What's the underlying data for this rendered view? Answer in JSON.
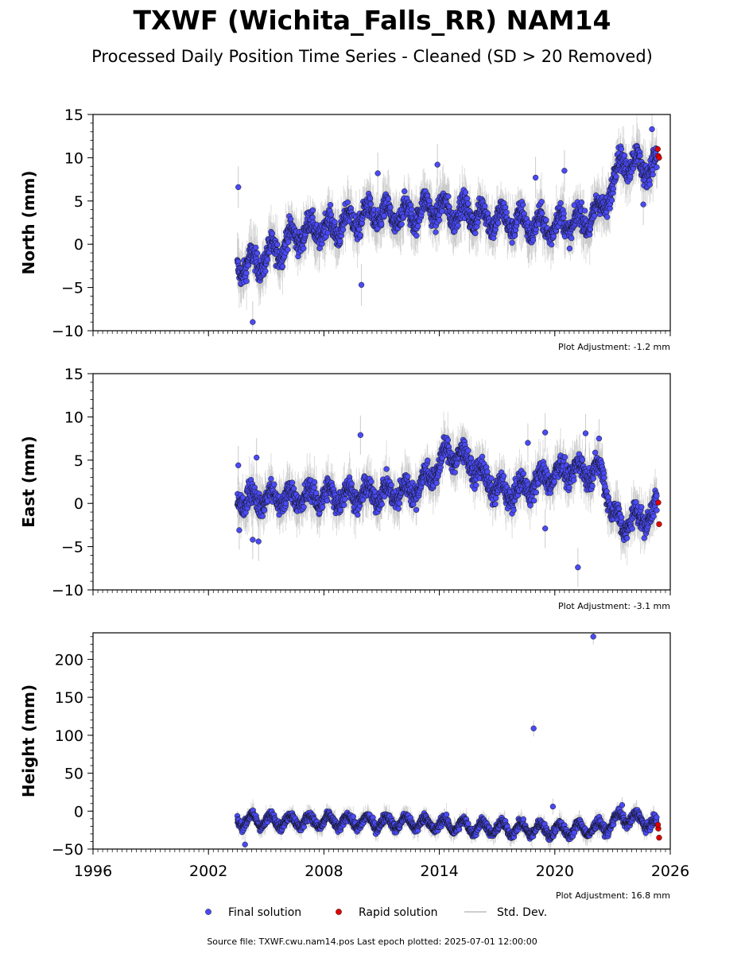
{
  "title": "TXWF (Wichita_Falls_RR) NAM14",
  "subtitle": "Processed Daily Position Time Series - Cleaned (SD > 20 Removed)",
  "footer": "Source file: TXWF.cwu.nam14.pos  Last epoch plotted: 2025-07-01 12:00:00",
  "colors": {
    "final": "#4a4af5",
    "rapid": "#e00000",
    "std_dev": "#bdbdbd"
  },
  "legend": [
    {
      "label": "Final solution",
      "marker": "dot",
      "color": "#4a4af5"
    },
    {
      "label": "Rapid solution",
      "marker": "dot",
      "color": "#e00000"
    },
    {
      "label": "Std. Dev.",
      "marker": "line",
      "color": "#bdbdbd"
    }
  ],
  "chart_data": [
    {
      "type": "scatter",
      "ylabel": "North (mm)",
      "xlim": [
        1996,
        2026
      ],
      "ylim": [
        -10,
        15
      ],
      "yticks": [
        -10,
        -5,
        0,
        5,
        10,
        15
      ],
      "xticks": [
        1996,
        2002,
        2008,
        2014,
        2020,
        2026
      ],
      "show_xtick_labels": false,
      "adjustment": "Plot Adjustment: -1.2 mm",
      "final_trend": [
        [
          2003.5,
          -2.5
        ],
        [
          2004.5,
          -2.2
        ],
        [
          2005.5,
          -0.8
        ],
        [
          2006.5,
          1.0
        ],
        [
          2007.5,
          1.8
        ],
        [
          2008.5,
          1.8
        ],
        [
          2009.5,
          2.8
        ],
        [
          2010.5,
          3.5
        ],
        [
          2011.5,
          3.2
        ],
        [
          2012.5,
          3.4
        ],
        [
          2013.5,
          4.2
        ],
        [
          2014.5,
          3.8
        ],
        [
          2015.5,
          3.6
        ],
        [
          2016.5,
          3.0
        ],
        [
          2017.5,
          2.8
        ],
        [
          2018.5,
          2.4
        ],
        [
          2019.5,
          2.0
        ],
        [
          2020.5,
          2.4
        ],
        [
          2021.5,
          2.6
        ],
        [
          2022.5,
          4.2
        ],
        [
          2023.5,
          9.8
        ],
        [
          2024.5,
          9.0
        ],
        [
          2025.3,
          9.0
        ]
      ],
      "scatter": 1.6,
      "seasonal": 1.2,
      "outliers": [
        [
          2003.55,
          6.6
        ],
        [
          2004.3,
          -9.0
        ],
        [
          2009.95,
          -4.7
        ],
        [
          2010.8,
          8.2
        ],
        [
          2013.9,
          9.2
        ],
        [
          2019.0,
          7.7
        ],
        [
          2020.5,
          8.5
        ],
        [
          2024.6,
          4.6
        ],
        [
          2025.05,
          13.3
        ],
        [
          2025.3,
          8.9
        ]
      ],
      "rapid": [
        [
          2025.35,
          11.0
        ],
        [
          2025.38,
          10.2
        ],
        [
          2025.42,
          10.0
        ]
      ]
    },
    {
      "type": "scatter",
      "ylabel": "East (mm)",
      "xlim": [
        1996,
        2026
      ],
      "ylim": [
        -10,
        15
      ],
      "yticks": [
        -10,
        -5,
        0,
        5,
        10,
        15
      ],
      "xticks": [
        1996,
        2002,
        2008,
        2014,
        2020,
        2026
      ],
      "show_xtick_labels": false,
      "adjustment": "Plot Adjustment: -3.1 mm",
      "final_trend": [
        [
          2003.5,
          0.5
        ],
        [
          2005.5,
          0.6
        ],
        [
          2007.5,
          0.8
        ],
        [
          2009.5,
          1.0
        ],
        [
          2011.5,
          1.2
        ],
        [
          2012.5,
          1.5
        ],
        [
          2013.5,
          3.0
        ],
        [
          2014.5,
          6.0
        ],
        [
          2015.5,
          5.0
        ],
        [
          2016.5,
          2.5
        ],
        [
          2017.5,
          1.0
        ],
        [
          2018.5,
          1.8
        ],
        [
          2019.5,
          3.0
        ],
        [
          2020.5,
          3.8
        ],
        [
          2021.5,
          3.8
        ],
        [
          2022.5,
          3.5
        ],
        [
          2023.0,
          -1.0
        ],
        [
          2023.5,
          -3.0
        ],
        [
          2024.0,
          -1.5
        ],
        [
          2024.5,
          -2.0
        ],
        [
          2025.3,
          -0.5
        ]
      ],
      "scatter": 1.5,
      "seasonal": 1.0,
      "outliers": [
        [
          2003.55,
          4.4
        ],
        [
          2003.6,
          -3.1
        ],
        [
          2004.3,
          -4.2
        ],
        [
          2004.6,
          -4.4
        ],
        [
          2004.5,
          5.3
        ],
        [
          2009.9,
          7.9
        ],
        [
          2018.6,
          7.0
        ],
        [
          2019.5,
          8.2
        ],
        [
          2019.5,
          -2.9
        ],
        [
          2021.2,
          -7.4
        ],
        [
          2021.6,
          8.1
        ],
        [
          2022.3,
          7.5
        ],
        [
          2025.3,
          -0.8
        ]
      ],
      "rapid": [
        [
          2025.38,
          0.1
        ],
        [
          2025.42,
          -2.4
        ]
      ]
    },
    {
      "type": "scatter",
      "ylabel": "Height (mm)",
      "xlim": [
        1996,
        2026
      ],
      "ylim": [
        -50,
        235
      ],
      "yticks": [
        -50,
        0,
        50,
        100,
        150,
        200
      ],
      "xticks": [
        1996,
        2002,
        2008,
        2014,
        2020,
        2026
      ],
      "xtick_labels": [
        "1996",
        "2002",
        "2008",
        "2014",
        "2020",
        "2026"
      ],
      "show_xtick_labels": true,
      "adjustment": "Plot Adjustment: 16.8 mm",
      "final_trend": [
        [
          2003.5,
          -12
        ],
        [
          2008.5,
          -14
        ],
        [
          2012.5,
          -15
        ],
        [
          2016.5,
          -22
        ],
        [
          2020.5,
          -25
        ],
        [
          2022.5,
          -22
        ],
        [
          2023.5,
          -8
        ],
        [
          2024.5,
          -12
        ],
        [
          2025.3,
          -20
        ]
      ],
      "scatter": 7,
      "seasonal": 8,
      "outliers": [
        [
          2003.9,
          -44
        ],
        [
          2018.9,
          109
        ],
        [
          2019.9,
          6
        ],
        [
          2022.0,
          230
        ],
        [
          2023.5,
          8
        ]
      ],
      "rapid": [
        [
          2025.38,
          -23
        ],
        [
          2025.42,
          -35
        ],
        [
          2025.36,
          -18
        ]
      ]
    }
  ]
}
